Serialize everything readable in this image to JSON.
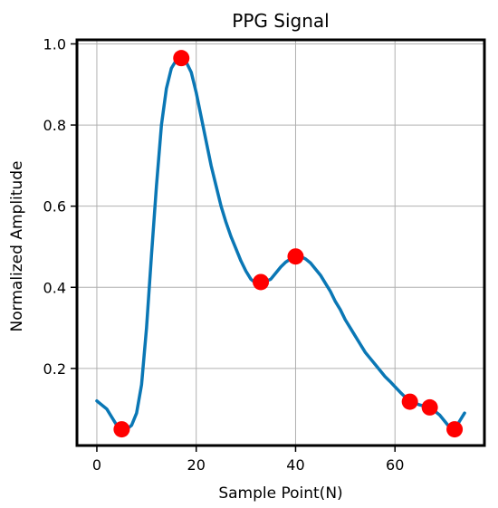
{
  "chart_data": {
    "type": "line",
    "title": "PPG Signal",
    "xlabel": "Sample Point(N)",
    "ylabel": "Normalized Amplitude",
    "xlim": [
      -4,
      78
    ],
    "ylim": [
      0.01,
      1.01
    ],
    "xticks": [
      0,
      20,
      40,
      60
    ],
    "yticks": [
      0.2,
      0.4,
      0.6,
      0.8,
      1.0
    ],
    "xtick_labels": [
      "0",
      "20",
      "40",
      "60"
    ],
    "ytick_labels": [
      "0.2",
      "0.4",
      "0.6",
      "0.8",
      "1.0"
    ],
    "grid": true,
    "series": [
      {
        "color": "#0a77b5",
        "x": [
          0,
          2,
          3,
          4,
          5,
          6,
          7,
          8,
          9,
          10,
          11,
          12,
          13,
          14,
          15,
          16,
          17,
          18,
          19,
          20,
          21,
          22,
          23,
          24,
          25,
          26,
          27,
          28,
          29,
          30,
          31,
          32,
          33,
          34,
          35,
          36,
          37,
          38,
          39,
          40,
          41,
          42,
          43,
          44,
          45,
          46,
          47,
          48,
          49,
          50,
          51,
          52,
          53,
          54,
          55,
          56,
          57,
          58,
          59,
          60,
          61,
          62,
          63,
          64,
          65,
          66,
          67,
          68,
          69,
          70,
          71,
          72,
          73,
          74
        ],
        "y": [
          0.12,
          0.1,
          0.08,
          0.06,
          0.05,
          0.05,
          0.06,
          0.09,
          0.16,
          0.3,
          0.48,
          0.65,
          0.8,
          0.89,
          0.94,
          0.96,
          0.965,
          0.955,
          0.93,
          0.88,
          0.82,
          0.76,
          0.7,
          0.65,
          0.6,
          0.56,
          0.525,
          0.495,
          0.465,
          0.44,
          0.42,
          0.41,
          0.413,
          0.415,
          0.42,
          0.435,
          0.45,
          0.462,
          0.47,
          0.475,
          0.476,
          0.47,
          0.46,
          0.445,
          0.43,
          0.41,
          0.39,
          0.365,
          0.345,
          0.32,
          0.3,
          0.28,
          0.26,
          0.24,
          0.225,
          0.21,
          0.195,
          0.18,
          0.168,
          0.155,
          0.142,
          0.13,
          0.12,
          0.115,
          0.11,
          0.107,
          0.103,
          0.095,
          0.085,
          0.07,
          0.055,
          0.05,
          0.07,
          0.09
        ]
      }
    ],
    "markers": {
      "color": "#ff0000",
      "x": [
        5,
        17,
        33,
        40,
        63,
        67,
        72
      ],
      "y": [
        0.05,
        0.965,
        0.413,
        0.476,
        0.118,
        0.104,
        0.05
      ]
    }
  }
}
